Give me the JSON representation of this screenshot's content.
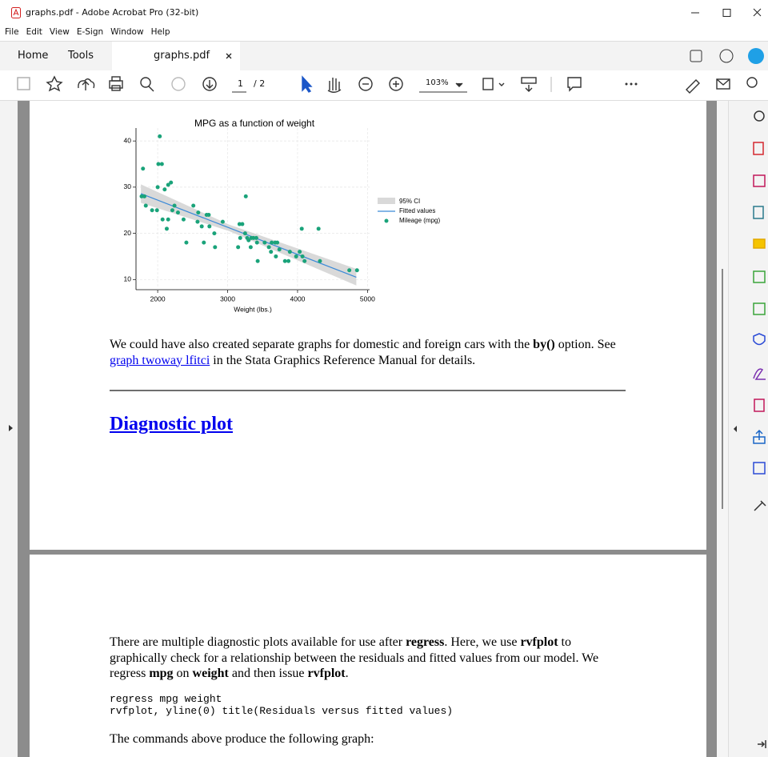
{
  "window": {
    "title": "graphs.pdf - Adobe Acrobat Pro (32-bit)"
  },
  "menu": [
    "File",
    "Edit",
    "View",
    "E-Sign",
    "Window",
    "Help"
  ],
  "tabs": [
    "Home",
    "Tools",
    "graphs.pdf"
  ],
  "toolbar": {
    "page": "1",
    "pages": "/ 2",
    "zoom": "103%"
  },
  "chart_data": {
    "type": "scatter",
    "title": "MPG as a function of weight",
    "x_label": "Weight (lbs.)",
    "xlim": [
      1690,
      5030
    ],
    "ylim": [
      7.8,
      42.8
    ],
    "xticks": [
      2000,
      3000,
      4000,
      5000
    ],
    "yticks": [
      10,
      20,
      30,
      40
    ],
    "grid": true,
    "legend": "right",
    "band": {
      "name": "95% CI",
      "color": "#d9d9d9",
      "x": [
        1760,
        3020,
        4840
      ],
      "lower": [
        26.6,
        20.5,
        8.7
      ],
      "upper": [
        30.6,
        21.9,
        12.3
      ]
    },
    "line": {
      "name": "Fitted values",
      "color": "#3b8ad8",
      "x": [
        1760,
        4840
      ],
      "values": [
        28.6,
        10.5
      ]
    },
    "series": [
      {
        "name": "Mileage (mpg)",
        "color": "#1aa37a",
        "x": [
          2030,
          1790,
          2010,
          2060,
          1770,
          1810,
          2000,
          2100,
          2150,
          2190,
          1830,
          1920,
          1990,
          2070,
          2150,
          2130,
          2210,
          2240,
          2290,
          2370,
          2410,
          2510,
          2580,
          2570,
          2630,
          2660,
          2700,
          2730,
          2740,
          2810,
          2820,
          2930,
          3170,
          3210,
          3180,
          3250,
          3260,
          3280,
          3300,
          3340,
          3370,
          3410,
          3420,
          3150,
          3330,
          3430,
          3530,
          3590,
          3630,
          3680,
          3710,
          3620,
          3690,
          3740,
          3820,
          3890,
          3870,
          3980,
          4060,
          4030,
          4070,
          4100,
          4300,
          4320,
          4740,
          4850
        ],
        "values": [
          41,
          34,
          35,
          35,
          28,
          28,
          30,
          29.5,
          30.5,
          31,
          26,
          25,
          25,
          23,
          23,
          21,
          25,
          26,
          24.5,
          23,
          18,
          26,
          24.5,
          22.5,
          21.5,
          18,
          24,
          24,
          21.5,
          20,
          17,
          22.5,
          22,
          22,
          19,
          20,
          28,
          19,
          18.5,
          19,
          19,
          19,
          18,
          17,
          17,
          14,
          18,
          17,
          18,
          18,
          18,
          16,
          15,
          16.5,
          14,
          16,
          14,
          15,
          21,
          16,
          15,
          14,
          21,
          14,
          12,
          12
        ]
      }
    ]
  },
  "document": {
    "para1": [
      "We could have also created separate graphs for domestic and foreign cars with the ",
      "by()",
      " option. See ",
      "graph twoway lfitci",
      " in the Stata Graphics Reference Manual for details."
    ],
    "heading": "Diagnostic plot",
    "para2": [
      "There are multiple diagnostic plots available for use after ",
      "regress",
      ". Here, we use ",
      "rvfplot",
      " to graphically check for a relationship between the residuals and fitted values from our model. We regress ",
      "mpg",
      " on ",
      "weight",
      " and then issue ",
      "rvfplot",
      "."
    ],
    "code": [
      "regress mpg weight",
      "rvfplot, yline(0) title(Residuals versus fitted values)"
    ],
    "para3": "The commands above produce the following graph:"
  }
}
